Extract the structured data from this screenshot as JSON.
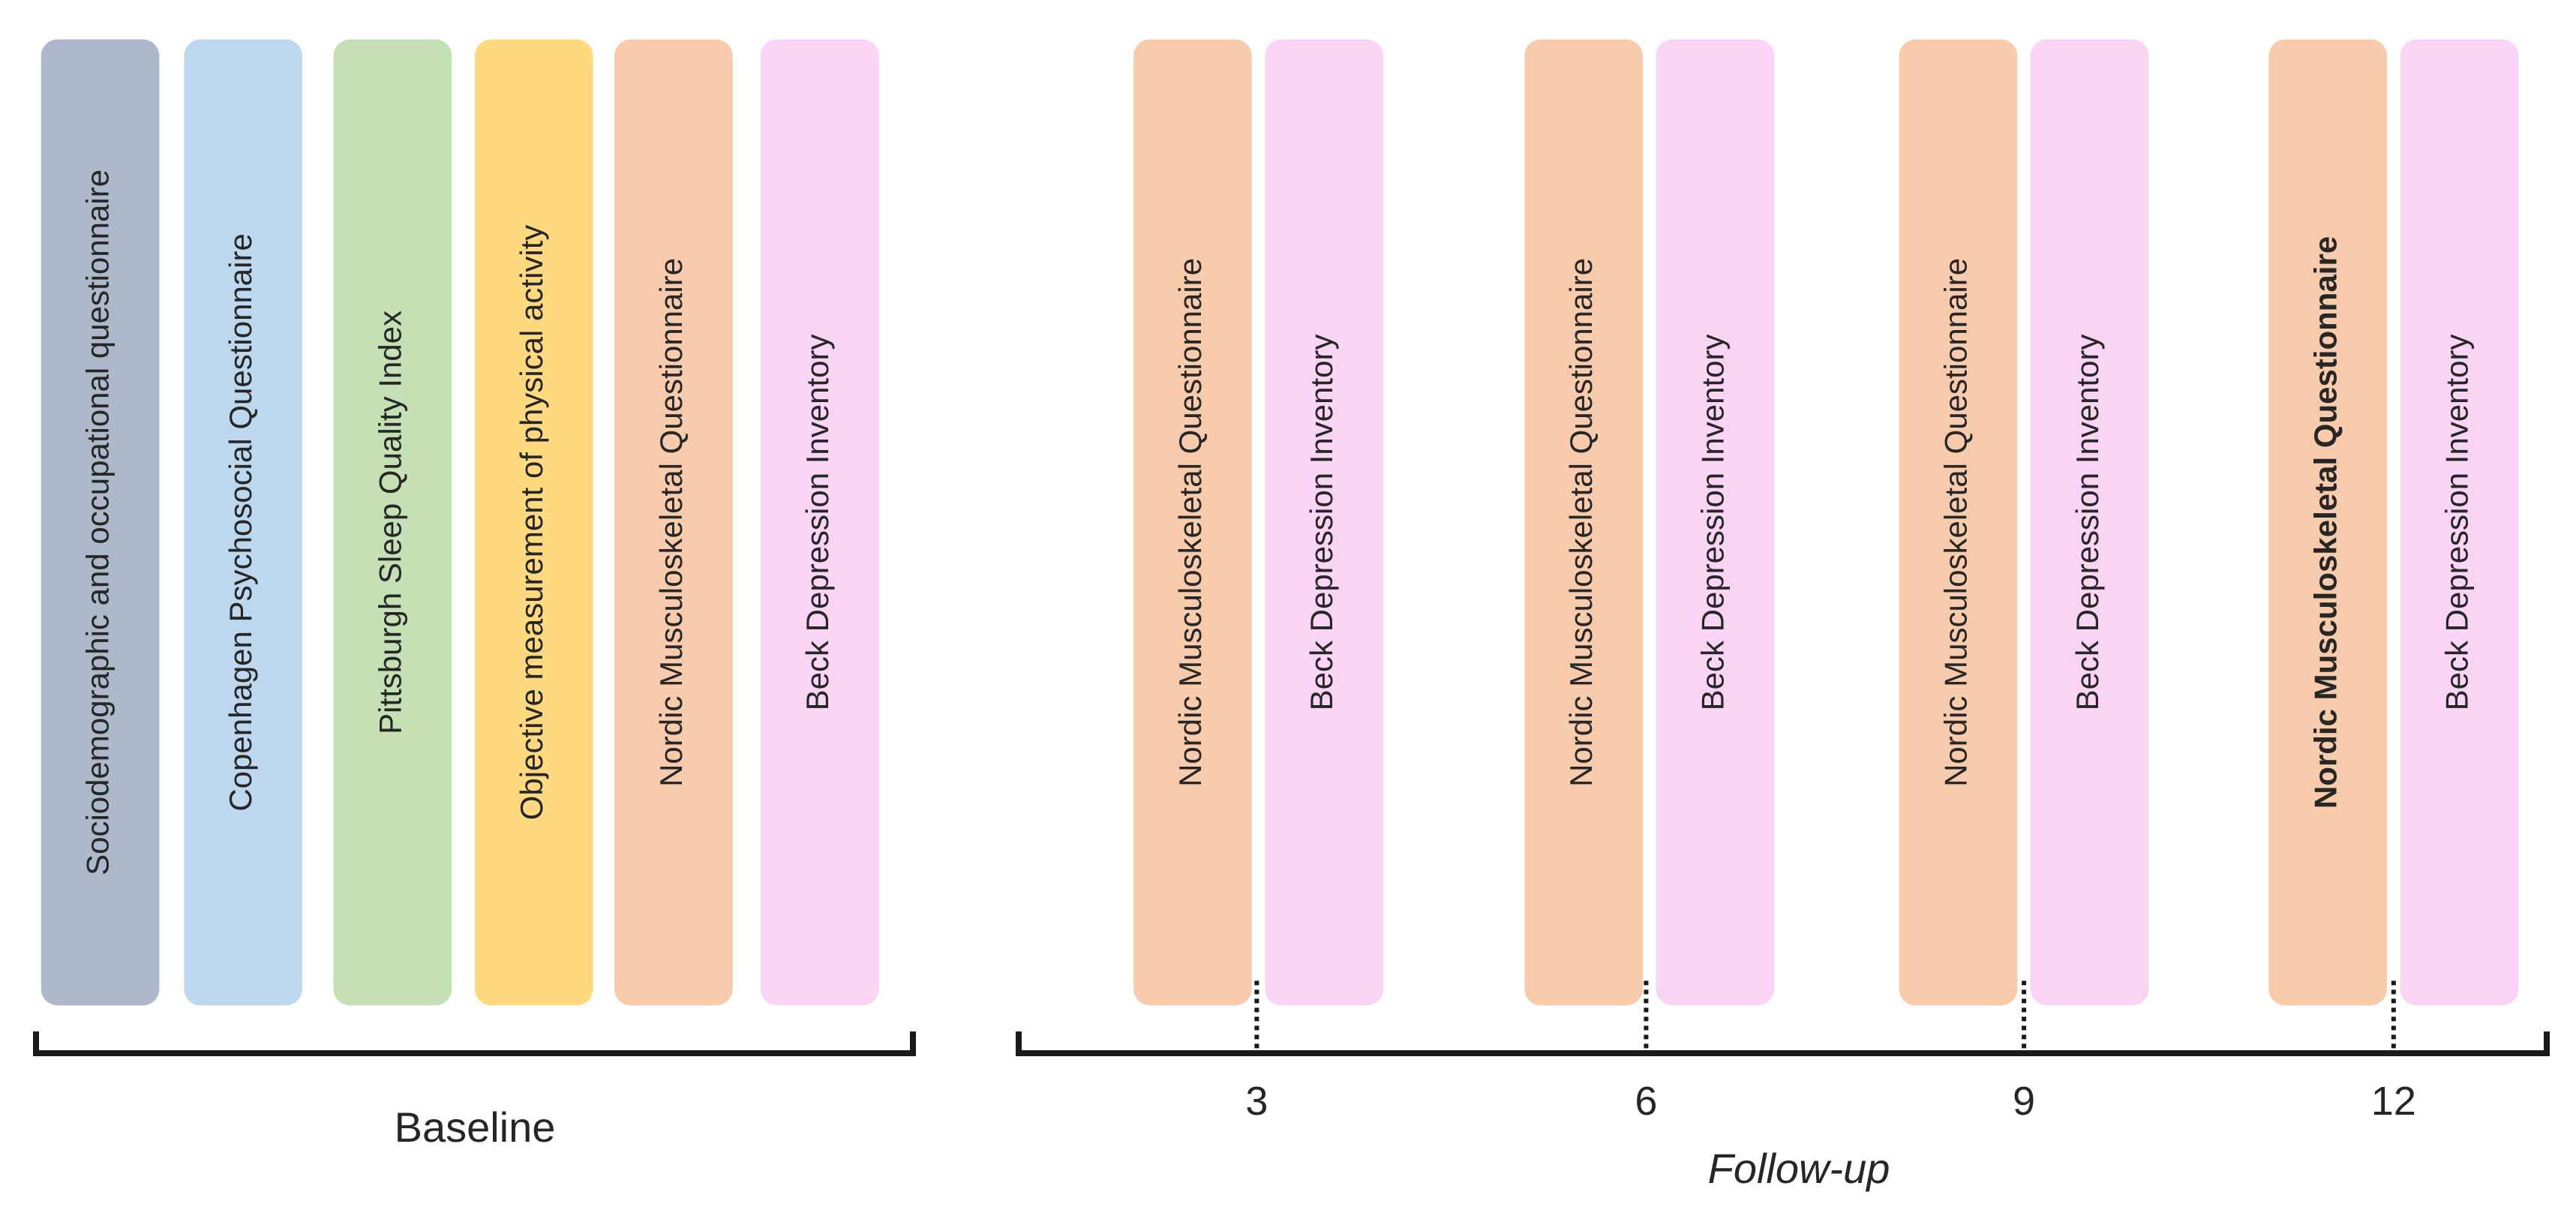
{
  "baseline": {
    "items": [
      "Sociodemographic and occupational questionnaire",
      "Copenhagen Psychosocial Questionnaire",
      "Pittsburgh Sleep Quality Index",
      "Objective measurement of physical activity",
      "Nordic Musculoskeletal Questionnaire",
      "Beck Depression Inventory"
    ],
    "label": "Baseline"
  },
  "follow_up": {
    "label": "Follow-up",
    "timepoints": [
      {
        "month": "3",
        "items": [
          "Nordic Musculoskeletal Questionnaire",
          "Beck Depression Inventory"
        ]
      },
      {
        "month": "6",
        "items": [
          "Nordic Musculoskeletal Questionnaire",
          "Beck Depression Inventory"
        ]
      },
      {
        "month": "9",
        "items": [
          "Nordic Musculoskeletal Questionnaire",
          "Beck Depression Inventory"
        ]
      },
      {
        "month": "12",
        "items": [
          "Nordic Musculoskeletal Questionnaire",
          "Beck Depression Inventory"
        ]
      }
    ]
  }
}
